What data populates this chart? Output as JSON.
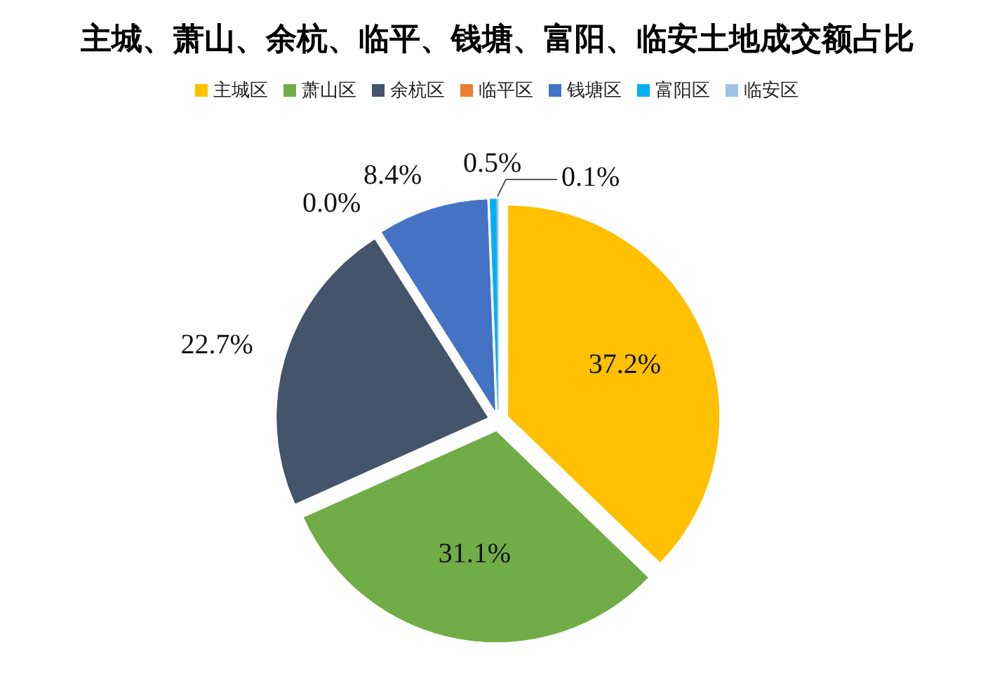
{
  "chart_data": {
    "type": "pie",
    "title": "主城、萧山、余杭、临平、钱塘、富阳、临安土地成交额占比",
    "categories": [
      "主城区",
      "萧山区",
      "余杭区",
      "临平区",
      "钱塘区",
      "富阳区",
      "临安区"
    ],
    "values": [
      37.2,
      31.1,
      22.7,
      0.0,
      8.4,
      0.5,
      0.1
    ],
    "colors": [
      "#ffc000",
      "#70ad47",
      "#44546a",
      "#ed7d31",
      "#4472c4",
      "#00b0f0",
      "#9dc3e6"
    ],
    "value_labels": [
      "37.2%",
      "31.1%",
      "22.7%",
      "0.0%",
      "8.4%",
      "0.5%",
      "0.1%"
    ],
    "legend": "top"
  }
}
